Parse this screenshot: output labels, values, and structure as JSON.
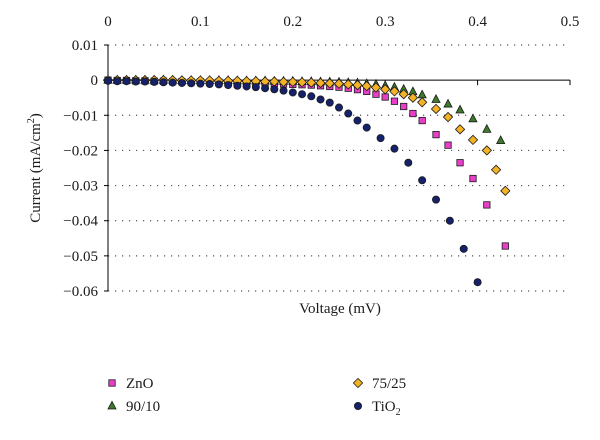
{
  "chart_data": {
    "type": "scatter",
    "title": "",
    "xlabel": "Voltage (mV)",
    "ylabel": "Current (mA/cm²)",
    "xlim": [
      0,
      0.5
    ],
    "ylim": [
      -0.06,
      0.01
    ],
    "x_ticks": [
      0,
      0.1,
      0.2,
      0.3,
      0.4,
      0.5
    ],
    "x_tick_labels": [
      "0",
      "0.1",
      "0.2",
      "0.3",
      "0.4",
      "0.5"
    ],
    "y_ticks": [
      0.01,
      0,
      -0.01,
      -0.02,
      -0.03,
      -0.04,
      -0.05,
      -0.06
    ],
    "y_tick_labels": [
      "0.01",
      "0",
      "−0.01",
      "−0.02",
      "−0.03",
      "−0.04",
      "−0.05",
      "−0.06"
    ],
    "x_axis_position": "top, at y = 0",
    "grid": "horizontal dotted",
    "legend_position": "bottom",
    "series": [
      {
        "name": "ZnO",
        "label_main": "ZnO",
        "label_sub": "",
        "marker": "square",
        "color": "#e83fc8",
        "points": [
          [
            0.0,
            0.0
          ],
          [
            0.01,
            -0.0001
          ],
          [
            0.02,
            -0.0001
          ],
          [
            0.03,
            -0.0002
          ],
          [
            0.04,
            -0.0002
          ],
          [
            0.05,
            -0.0003
          ],
          [
            0.06,
            -0.0003
          ],
          [
            0.07,
            -0.0004
          ],
          [
            0.08,
            -0.0004
          ],
          [
            0.09,
            -0.0005
          ],
          [
            0.1,
            -0.0005
          ],
          [
            0.11,
            -0.0006
          ],
          [
            0.12,
            -0.0006
          ],
          [
            0.13,
            -0.0007
          ],
          [
            0.14,
            -0.0007
          ],
          [
            0.15,
            -0.0008
          ],
          [
            0.16,
            -0.0008
          ],
          [
            0.17,
            -0.0009
          ],
          [
            0.18,
            -0.001
          ],
          [
            0.19,
            -0.0011
          ],
          [
            0.2,
            -0.0012
          ],
          [
            0.21,
            -0.0013
          ],
          [
            0.22,
            -0.0014
          ],
          [
            0.23,
            -0.0016
          ],
          [
            0.24,
            -0.0018
          ],
          [
            0.25,
            -0.002
          ],
          [
            0.26,
            -0.0023
          ],
          [
            0.27,
            -0.0027
          ],
          [
            0.28,
            -0.0032
          ],
          [
            0.29,
            -0.004
          ],
          [
            0.3,
            -0.0048
          ],
          [
            0.31,
            -0.006
          ],
          [
            0.32,
            -0.0075
          ],
          [
            0.33,
            -0.0095
          ],
          [
            0.34,
            -0.0115
          ],
          [
            0.355,
            -0.0155
          ],
          [
            0.368,
            -0.0185
          ],
          [
            0.381,
            -0.0235
          ],
          [
            0.395,
            -0.028
          ],
          [
            0.41,
            -0.0355
          ],
          [
            0.43,
            -0.0472
          ]
        ]
      },
      {
        "name": "90/10",
        "label_main": "90/10",
        "label_sub": "",
        "marker": "triangle",
        "color": "#3d7a2a",
        "points": [
          [
            0.0,
            0.0
          ],
          [
            0.01,
            0.0
          ],
          [
            0.02,
            0.0
          ],
          [
            0.03,
            0.0
          ],
          [
            0.04,
            0.0
          ],
          [
            0.05,
            0.0
          ],
          [
            0.06,
            0.0
          ],
          [
            0.07,
            0.0
          ],
          [
            0.08,
            -0.0001
          ],
          [
            0.09,
            -0.0001
          ],
          [
            0.1,
            -0.0001
          ],
          [
            0.11,
            -0.0001
          ],
          [
            0.12,
            -0.0001
          ],
          [
            0.13,
            -0.0001
          ],
          [
            0.14,
            -0.0002
          ],
          [
            0.15,
            -0.0002
          ],
          [
            0.16,
            -0.0002
          ],
          [
            0.17,
            -0.0002
          ],
          [
            0.18,
            -0.0003
          ],
          [
            0.19,
            -0.0003
          ],
          [
            0.2,
            -0.0003
          ],
          [
            0.21,
            -0.0004
          ],
          [
            0.22,
            -0.0004
          ],
          [
            0.23,
            -0.0005
          ],
          [
            0.24,
            -0.0005
          ],
          [
            0.25,
            -0.0006
          ],
          [
            0.26,
            -0.0007
          ],
          [
            0.27,
            -0.0008
          ],
          [
            0.28,
            -0.001
          ],
          [
            0.29,
            -0.0012
          ],
          [
            0.3,
            -0.0016
          ],
          [
            0.31,
            -0.002
          ],
          [
            0.32,
            -0.0026
          ],
          [
            0.33,
            -0.0033
          ],
          [
            0.34,
            -0.0042
          ],
          [
            0.355,
            -0.0055
          ],
          [
            0.368,
            -0.0068
          ],
          [
            0.381,
            -0.0085
          ],
          [
            0.395,
            -0.011
          ],
          [
            0.41,
            -0.014
          ],
          [
            0.425,
            -0.0172
          ]
        ]
      },
      {
        "name": "75/25",
        "label_main": "75/25",
        "label_sub": "",
        "marker": "diamond",
        "color": "#f4b326",
        "points": [
          [
            0.0,
            0.0
          ],
          [
            0.01,
            0.0
          ],
          [
            0.02,
            0.0
          ],
          [
            0.03,
            0.0
          ],
          [
            0.04,
            0.0
          ],
          [
            0.05,
            0.0
          ],
          [
            0.06,
            0.0
          ],
          [
            0.07,
            0.0
          ],
          [
            0.08,
            -0.0001
          ],
          [
            0.09,
            -0.0001
          ],
          [
            0.1,
            -0.0001
          ],
          [
            0.11,
            -0.0001
          ],
          [
            0.12,
            -0.0002
          ],
          [
            0.13,
            -0.0002
          ],
          [
            0.14,
            -0.0002
          ],
          [
            0.15,
            -0.0003
          ],
          [
            0.16,
            -0.0003
          ],
          [
            0.17,
            -0.0004
          ],
          [
            0.18,
            -0.0004
          ],
          [
            0.19,
            -0.0005
          ],
          [
            0.2,
            -0.0005
          ],
          [
            0.21,
            -0.0006
          ],
          [
            0.22,
            -0.0007
          ],
          [
            0.23,
            -0.0008
          ],
          [
            0.24,
            -0.0009
          ],
          [
            0.25,
            -0.001
          ],
          [
            0.26,
            -0.0012
          ],
          [
            0.27,
            -0.0014
          ],
          [
            0.28,
            -0.0017
          ],
          [
            0.29,
            -0.0021
          ],
          [
            0.3,
            -0.0026
          ],
          [
            0.31,
            -0.0032
          ],
          [
            0.32,
            -0.004
          ],
          [
            0.33,
            -0.005
          ],
          [
            0.34,
            -0.0063
          ],
          [
            0.355,
            -0.0082
          ],
          [
            0.368,
            -0.0105
          ],
          [
            0.381,
            -0.014
          ],
          [
            0.395,
            -0.017
          ],
          [
            0.41,
            -0.02
          ],
          [
            0.42,
            -0.0255
          ],
          [
            0.43,
            -0.0315
          ]
        ]
      },
      {
        "name": "TiO₂",
        "label_main": "TiO",
        "label_sub": "2",
        "marker": "circle",
        "color": "#16216b",
        "points": [
          [
            0.0,
            -0.0002
          ],
          [
            0.01,
            -0.0003
          ],
          [
            0.02,
            -0.0003
          ],
          [
            0.03,
            -0.0004
          ],
          [
            0.04,
            -0.0004
          ],
          [
            0.05,
            -0.0005
          ],
          [
            0.06,
            -0.0006
          ],
          [
            0.07,
            -0.0007
          ],
          [
            0.08,
            -0.0008
          ],
          [
            0.09,
            -0.0009
          ],
          [
            0.1,
            -0.001
          ],
          [
            0.11,
            -0.0011
          ],
          [
            0.12,
            -0.0012
          ],
          [
            0.13,
            -0.0014
          ],
          [
            0.14,
            -0.0016
          ],
          [
            0.15,
            -0.0018
          ],
          [
            0.16,
            -0.002
          ],
          [
            0.17,
            -0.0023
          ],
          [
            0.18,
            -0.0026
          ],
          [
            0.19,
            -0.003
          ],
          [
            0.2,
            -0.0035
          ],
          [
            0.21,
            -0.004
          ],
          [
            0.22,
            -0.0046
          ],
          [
            0.23,
            -0.0055
          ],
          [
            0.24,
            -0.0064
          ],
          [
            0.25,
            -0.0078
          ],
          [
            0.26,
            -0.0095
          ],
          [
            0.27,
            -0.0115
          ],
          [
            0.28,
            -0.0135
          ],
          [
            0.295,
            -0.0165
          ],
          [
            0.31,
            -0.0195
          ],
          [
            0.325,
            -0.0235
          ],
          [
            0.34,
            -0.0285
          ],
          [
            0.355,
            -0.034
          ],
          [
            0.37,
            -0.04
          ],
          [
            0.385,
            -0.048
          ],
          [
            0.4,
            -0.0575
          ]
        ]
      }
    ]
  }
}
